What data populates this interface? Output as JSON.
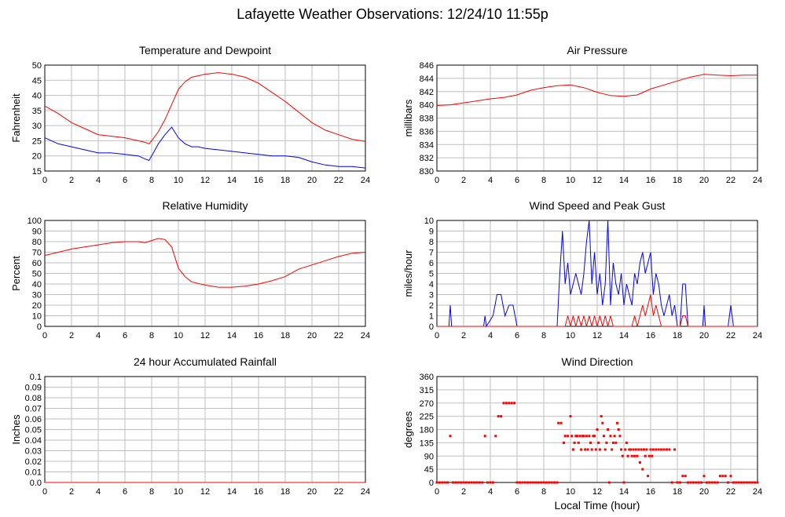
{
  "page": {
    "title": "Lafayette Weather Observations: 12/24/10 11:55p"
  },
  "chart_data": [
    {
      "type": "line",
      "title": "Temperature and Dewpoint",
      "xlabel": "",
      "ylabel": "Fahrenheit",
      "xlim": [
        0,
        24
      ],
      "ylim": [
        15,
        50
      ],
      "grid": true,
      "xticks": [
        "0",
        "2",
        "4",
        "6",
        "8",
        "10",
        "12",
        "14",
        "16",
        "18",
        "20",
        "22",
        "24"
      ],
      "yticks": [
        "15",
        "20",
        "25",
        "30",
        "35",
        "40",
        "45",
        "50"
      ],
      "x": [
        0,
        1,
        2,
        3,
        4,
        5,
        6,
        7,
        7.5,
        7.8,
        8,
        8.5,
        9,
        9.5,
        10,
        10.5,
        11,
        11.5,
        12,
        13,
        14,
        15,
        16,
        17,
        18,
        19,
        20,
        21,
        22,
        23,
        24
      ],
      "series": [
        {
          "color": "#ff0000",
          "values": [
            36.5,
            34,
            31,
            29,
            27,
            26.5,
            26,
            25,
            24.5,
            24,
            25,
            28,
            32,
            37,
            42,
            44.5,
            46,
            46.5,
            47,
            47.5,
            47,
            46,
            44,
            41,
            38,
            34.5,
            31,
            28.5,
            27,
            25.5,
            24.8
          ]
        },
        {
          "color": "#0000ff",
          "values": [
            26,
            24,
            23,
            22,
            21,
            21,
            20.5,
            20,
            19,
            18.5,
            20,
            24,
            27,
            29.5,
            26,
            24,
            23,
            23,
            22.5,
            22,
            21.5,
            21,
            20.5,
            20,
            20,
            19.5,
            18,
            17,
            16.5,
            16.5,
            16
          ]
        }
      ]
    },
    {
      "type": "line",
      "title": "Air Pressure",
      "xlabel": "",
      "ylabel": "millibars",
      "xlim": [
        0,
        24
      ],
      "ylim": [
        830,
        846
      ],
      "grid": true,
      "xticks": [
        "0",
        "2",
        "4",
        "6",
        "8",
        "10",
        "12",
        "14",
        "16",
        "18",
        "20",
        "22",
        "24"
      ],
      "yticks": [
        "830",
        "832",
        "834",
        "836",
        "838",
        "840",
        "842",
        "844",
        "846"
      ],
      "x": [
        0,
        1,
        2,
        3,
        4,
        5,
        6,
        7,
        8,
        9,
        10,
        11,
        12,
        13,
        14,
        15,
        16,
        17,
        18,
        19,
        20,
        21,
        22,
        23,
        24
      ],
      "series": [
        {
          "color": "#ff0000",
          "values": [
            839.9,
            840,
            840.3,
            840.6,
            840.9,
            841.1,
            841.5,
            842.2,
            842.6,
            842.9,
            843,
            842.6,
            841.9,
            841.4,
            841.3,
            841.5,
            842.4,
            843,
            843.6,
            844.2,
            844.6,
            844.5,
            844.4,
            844.5,
            844.5
          ]
        }
      ]
    },
    {
      "type": "line",
      "title": "Relative Humidity",
      "xlabel": "",
      "ylabel": "Percent",
      "xlim": [
        0,
        24
      ],
      "ylim": [
        0,
        100
      ],
      "grid": true,
      "xticks": [
        "0",
        "2",
        "4",
        "6",
        "8",
        "10",
        "12",
        "14",
        "16",
        "18",
        "20",
        "22",
        "24"
      ],
      "yticks": [
        "0",
        "10",
        "20",
        "30",
        "40",
        "50",
        "60",
        "70",
        "80",
        "90",
        "100"
      ],
      "x": [
        0,
        1,
        2,
        3,
        4,
        5,
        6,
        7,
        7.5,
        8,
        8.5,
        9,
        9.5,
        10,
        10.5,
        11,
        12,
        13,
        14,
        15,
        16,
        17,
        18,
        19,
        20,
        21,
        22,
        23,
        24
      ],
      "series": [
        {
          "color": "#ff0000",
          "values": [
            67,
            70,
            73,
            75,
            77,
            79,
            80,
            80,
            79,
            81,
            83,
            82,
            75,
            55,
            47,
            42,
            39,
            37,
            37,
            38,
            40,
            43,
            47,
            54,
            58,
            62,
            66,
            69,
            70
          ]
        }
      ]
    },
    {
      "type": "line",
      "title": "Wind Speed and Peak Gust",
      "xlabel": "",
      "ylabel": "miles/hour",
      "xlim": [
        0,
        24
      ],
      "ylim": [
        0,
        10
      ],
      "grid": true,
      "xticks": [
        "0",
        "2",
        "4",
        "6",
        "8",
        "10",
        "12",
        "14",
        "16",
        "18",
        "20",
        "22",
        "24"
      ],
      "yticks": [
        "0",
        "1",
        "2",
        "3",
        "4",
        "5",
        "6",
        "7",
        "8",
        "9",
        "10"
      ],
      "x": [
        0,
        0.9,
        1,
        1.1,
        3.5,
        3.6,
        3.7,
        4.2,
        4.5,
        4.8,
        5.1,
        5.4,
        5.7,
        6,
        9,
        9.2,
        9.4,
        9.6,
        9.8,
        10,
        10.2,
        10.4,
        10.6,
        10.8,
        11,
        11.2,
        11.4,
        11.6,
        11.8,
        12,
        12.2,
        12.4,
        12.6,
        12.8,
        13,
        13.2,
        13.4,
        13.6,
        13.8,
        14,
        14.2,
        14.4,
        14.6,
        14.8,
        15,
        15.2,
        15.4,
        15.6,
        15.8,
        16,
        16.2,
        16.4,
        16.6,
        16.8,
        17,
        17.2,
        17.4,
        17.6,
        17.8,
        18,
        18.2,
        18.4,
        18.6,
        18.8,
        19.9,
        20,
        20.1,
        21.8,
        22,
        22.2,
        24
      ],
      "series": [
        {
          "color": "#0000ff",
          "values": [
            0,
            0,
            2,
            0,
            0,
            1,
            0,
            1,
            3,
            3,
            1,
            2,
            2,
            0,
            0,
            5,
            9,
            4,
            6,
            3,
            4,
            5,
            4,
            3,
            5,
            8,
            10,
            4,
            7,
            3,
            5,
            2,
            4,
            10,
            2,
            6,
            4,
            3,
            5,
            2,
            4,
            3,
            2,
            5,
            4,
            6,
            7,
            5,
            6,
            7,
            3,
            5,
            4,
            2,
            1,
            2,
            3,
            1,
            2,
            0,
            0,
            4,
            4,
            0,
            0,
            2,
            0,
            0,
            2,
            0,
            0
          ]
        },
        {
          "color": "#ff0000",
          "values": [
            0,
            0,
            0,
            0,
            0,
            0,
            0,
            0,
            0,
            0,
            0,
            0,
            0,
            0,
            0,
            0,
            0,
            0,
            1,
            0,
            1,
            0,
            1,
            0,
            1,
            0,
            1,
            0,
            1,
            0,
            1,
            0,
            1,
            0,
            1,
            0,
            0,
            0,
            0,
            0,
            0,
            0,
            0,
            1,
            0,
            1,
            2,
            1,
            2,
            3,
            1,
            2,
            1,
            0,
            0,
            0,
            0,
            0,
            0,
            0,
            0,
            1,
            1,
            0,
            0,
            0,
            0,
            0,
            0,
            0,
            0
          ]
        }
      ]
    },
    {
      "type": "line",
      "title": "24 hour Accumulated Rainfall",
      "xlabel": "",
      "ylabel": "Inches",
      "xlim": [
        0,
        24
      ],
      "ylim": [
        0,
        0.1
      ],
      "grid": true,
      "xticks": [
        "0",
        "2",
        "4",
        "6",
        "8",
        "10",
        "12",
        "14",
        "16",
        "18",
        "20",
        "22",
        "24"
      ],
      "yticks": [
        "0.0",
        "0.01",
        "0.02",
        "0.03",
        "0.04",
        "0.05",
        "0.06",
        "0.07",
        "0.08",
        "0.09",
        "0.1"
      ],
      "x": [
        0,
        24
      ],
      "series": [
        {
          "color": "#ff0000",
          "values": [
            0,
            0
          ]
        }
      ]
    },
    {
      "type": "scatter",
      "title": "Wind Direction",
      "xlabel": "Local Time (hour)",
      "ylabel": "degrees",
      "xlim": [
        0,
        24
      ],
      "ylim": [
        0,
        360
      ],
      "grid": true,
      "xticks": [
        "0",
        "2",
        "4",
        "6",
        "8",
        "10",
        "12",
        "14",
        "16",
        "18",
        "20",
        "22",
        "24"
      ],
      "yticks": [
        "0",
        "45",
        "90",
        "135",
        "180",
        "225",
        "270",
        "315",
        "360"
      ],
      "points": [
        [
          0,
          0
        ],
        [
          0.2,
          0
        ],
        [
          0.4,
          0
        ],
        [
          0.6,
          0
        ],
        [
          0.8,
          0
        ],
        [
          1,
          158
        ],
        [
          1.2,
          0
        ],
        [
          1.4,
          0
        ],
        [
          1.6,
          0
        ],
        [
          1.8,
          0
        ],
        [
          2,
          0
        ],
        [
          2.2,
          0
        ],
        [
          2.4,
          0
        ],
        [
          2.6,
          0
        ],
        [
          2.8,
          0
        ],
        [
          3,
          0
        ],
        [
          3.2,
          0
        ],
        [
          3.4,
          0
        ],
        [
          3.6,
          158
        ],
        [
          3.8,
          0
        ],
        [
          4,
          0
        ],
        [
          4.2,
          0
        ],
        [
          4.4,
          158
        ],
        [
          4.6,
          225
        ],
        [
          4.8,
          225
        ],
        [
          5,
          270
        ],
        [
          5.2,
          270
        ],
        [
          5.4,
          270
        ],
        [
          5.6,
          270
        ],
        [
          5.8,
          270
        ],
        [
          6,
          0
        ],
        [
          6.2,
          0
        ],
        [
          6.4,
          0
        ],
        [
          6.6,
          0
        ],
        [
          6.8,
          0
        ],
        [
          7,
          0
        ],
        [
          7.2,
          0
        ],
        [
          7.4,
          0
        ],
        [
          7.6,
          0
        ],
        [
          7.8,
          0
        ],
        [
          8,
          0
        ],
        [
          8.2,
          0
        ],
        [
          8.4,
          0
        ],
        [
          8.6,
          0
        ],
        [
          8.8,
          0
        ],
        [
          9,
          0
        ],
        [
          9.1,
          202
        ],
        [
          9.3,
          202
        ],
        [
          9.5,
          135
        ],
        [
          9.6,
          158
        ],
        [
          9.8,
          158
        ],
        [
          10,
          225
        ],
        [
          10.1,
          158
        ],
        [
          10.2,
          112
        ],
        [
          10.3,
          135
        ],
        [
          10.4,
          158
        ],
        [
          10.5,
          158
        ],
        [
          10.6,
          135
        ],
        [
          10.7,
          158
        ],
        [
          10.8,
          112
        ],
        [
          10.9,
          158
        ],
        [
          11,
          158
        ],
        [
          11.1,
          112
        ],
        [
          11.2,
          158
        ],
        [
          11.3,
          112
        ],
        [
          11.4,
          158
        ],
        [
          11.5,
          135
        ],
        [
          11.6,
          112
        ],
        [
          11.7,
          158
        ],
        [
          11.8,
          158
        ],
        [
          11.9,
          112
        ],
        [
          12,
          180
        ],
        [
          12.1,
          135
        ],
        [
          12.2,
          112
        ],
        [
          12.3,
          225
        ],
        [
          12.4,
          202
        ],
        [
          12.5,
          158
        ],
        [
          12.6,
          112
        ],
        [
          12.7,
          135
        ],
        [
          12.8,
          180
        ],
        [
          12.9,
          0
        ],
        [
          13,
          158
        ],
        [
          13.1,
          112
        ],
        [
          13.2,
          135
        ],
        [
          13.3,
          158
        ],
        [
          13.4,
          135
        ],
        [
          13.5,
          202
        ],
        [
          13.6,
          180
        ],
        [
          13.7,
          158
        ],
        [
          13.8,
          112
        ],
        [
          13.9,
          90
        ],
        [
          14,
          0
        ],
        [
          14.1,
          112
        ],
        [
          14.2,
          135
        ],
        [
          14.3,
          90
        ],
        [
          14.4,
          112
        ],
        [
          14.5,
          112
        ],
        [
          14.6,
          90
        ],
        [
          14.7,
          112
        ],
        [
          14.8,
          90
        ],
        [
          14.9,
          112
        ],
        [
          15,
          90
        ],
        [
          15.1,
          112
        ],
        [
          15.2,
          68
        ],
        [
          15.3,
          112
        ],
        [
          15.4,
          45
        ],
        [
          15.5,
          112
        ],
        [
          15.6,
          90
        ],
        [
          15.7,
          112
        ],
        [
          15.8,
          22
        ],
        [
          15.9,
          90
        ],
        [
          16,
          112
        ],
        [
          16.1,
          90
        ],
        [
          16.2,
          112
        ],
        [
          16.4,
          112
        ],
        [
          16.6,
          112
        ],
        [
          16.8,
          112
        ],
        [
          17,
          112
        ],
        [
          17.2,
          112
        ],
        [
          17.4,
          112
        ],
        [
          17.6,
          0
        ],
        [
          17.8,
          112
        ],
        [
          18,
          0
        ],
        [
          18.2,
          0
        ],
        [
          18.4,
          22
        ],
        [
          18.6,
          22
        ],
        [
          18.8,
          0
        ],
        [
          19,
          0
        ],
        [
          19.2,
          0
        ],
        [
          19.4,
          0
        ],
        [
          19.6,
          0
        ],
        [
          19.8,
          0
        ],
        [
          20,
          22
        ],
        [
          20.2,
          0
        ],
        [
          20.4,
          0
        ],
        [
          20.6,
          0
        ],
        [
          20.8,
          0
        ],
        [
          21,
          0
        ],
        [
          21.2,
          22
        ],
        [
          21.4,
          22
        ],
        [
          21.6,
          22
        ],
        [
          21.8,
          0
        ],
        [
          22,
          22
        ],
        [
          22.2,
          0
        ],
        [
          22.4,
          0
        ],
        [
          22.6,
          0
        ],
        [
          22.8,
          0
        ],
        [
          23,
          0
        ],
        [
          23.2,
          0
        ],
        [
          23.4,
          0
        ],
        [
          23.6,
          0
        ],
        [
          23.8,
          0
        ],
        [
          24,
          0
        ]
      ],
      "color": "#ff0000"
    }
  ]
}
